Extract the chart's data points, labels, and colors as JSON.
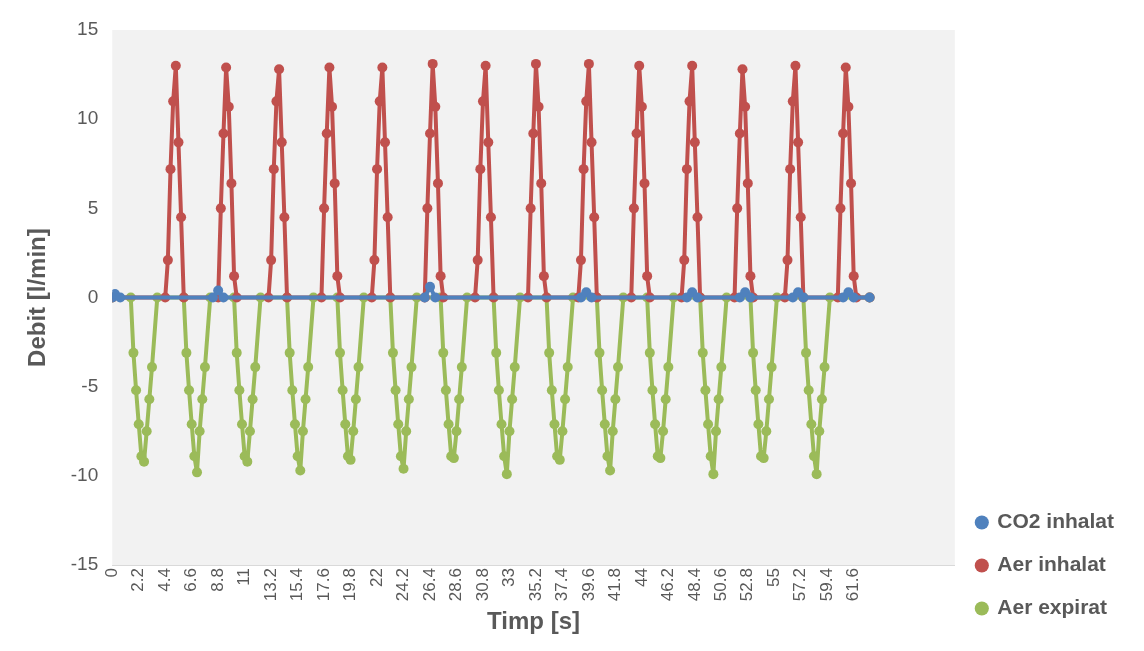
{
  "chart_data": {
    "type": "line",
    "xlabel": "Timp [s]",
    "ylabel": "Debit [l/min]",
    "xlim": [
      0,
      70
    ],
    "xticks": [
      0,
      2.2,
      4.4,
      6.6,
      8.8,
      11,
      13.2,
      15.4,
      17.6,
      19.8,
      22,
      24.2,
      26.4,
      28.6,
      30.8,
      33,
      35.2,
      37.4,
      39.6,
      41.8,
      44,
      46.2,
      48.4,
      50.6,
      52.8,
      55,
      57.2,
      59.4,
      61.6
    ],
    "ylim": [
      -15,
      15
    ],
    "yticks": [
      -15,
      -10,
      -5,
      0,
      5,
      10,
      15
    ],
    "grid": false,
    "legend": "bottom right",
    "marker": "circle",
    "line_style": "solid",
    "series": [
      {
        "name": "CO2 inhalat",
        "color": "#4f81bd",
        "x": [
          0,
          0.22,
          0.66,
          8.36,
          8.8,
          9.24,
          25.96,
          26.4,
          26.84,
          38.94,
          39.38,
          39.82,
          47.74,
          48.18,
          48.62,
          52.14,
          52.58,
          53.02,
          56.54,
          56.98,
          57.42,
          60.72,
          61.16,
          61.6,
          62.92
        ],
        "values": [
          0,
          0.2,
          0,
          0,
          0.4,
          0,
          0,
          0.6,
          0,
          0,
          0.3,
          0,
          0,
          0.3,
          0,
          0,
          0.3,
          0,
          0,
          0.3,
          0,
          0,
          0.3,
          0,
          0
        ]
      },
      {
        "name": "Aer inhalat",
        "color": "#c0504d",
        "x": [
          0,
          4.4,
          4.62,
          4.84,
          5.06,
          5.28,
          5.5,
          5.72,
          5.94,
          8.8,
          9.02,
          9.24,
          9.46,
          9.68,
          9.9,
          10.12,
          10.34,
          12.98,
          13.2,
          13.42,
          13.64,
          13.86,
          14.08,
          14.3,
          14.52,
          17.38,
          17.6,
          17.82,
          18.04,
          18.26,
          18.48,
          18.7,
          18.92,
          21.56,
          21.78,
          22,
          22.22,
          22.44,
          22.66,
          22.88,
          23.1,
          25.96,
          26.18,
          26.4,
          26.62,
          26.84,
          27.06,
          27.28,
          27.5,
          30.14,
          30.36,
          30.58,
          30.8,
          31.02,
          31.24,
          31.46,
          31.68,
          34.54,
          34.76,
          34.98,
          35.2,
          35.42,
          35.64,
          35.86,
          36.08,
          38.72,
          38.94,
          39.16,
          39.38,
          39.6,
          39.82,
          40.04,
          40.26,
          43.12,
          43.34,
          43.56,
          43.78,
          44,
          44.22,
          44.44,
          44.66,
          47.3,
          47.52,
          47.74,
          47.96,
          48.18,
          48.4,
          48.62,
          48.84,
          51.7,
          51.92,
          52.14,
          52.36,
          52.58,
          52.8,
          53.02,
          53.24,
          55.88,
          56.1,
          56.32,
          56.54,
          56.76,
          56.98,
          57.2,
          57.42,
          60.28,
          60.5,
          60.72,
          60.94,
          61.16,
          61.38,
          61.6,
          61.82,
          62.92
        ],
        "values": [
          0,
          0,
          2.1,
          7.2,
          11,
          13,
          8.7,
          4.5,
          0,
          0,
          5,
          9.2,
          12.9,
          10.7,
          6.4,
          1.2,
          0,
          0,
          2.1,
          7.2,
          11,
          12.8,
          8.7,
          4.5,
          0,
          0,
          5,
          9.2,
          12.9,
          10.7,
          6.4,
          1.2,
          0,
          0,
          2.1,
          7.2,
          11,
          12.9,
          8.7,
          4.5,
          0,
          0,
          5,
          9.2,
          13.1,
          10.7,
          6.4,
          1.2,
          0,
          0,
          2.1,
          7.2,
          11,
          13,
          8.7,
          4.5,
          0,
          0,
          5,
          9.2,
          13.1,
          10.7,
          6.4,
          1.2,
          0,
          0,
          2.1,
          7.2,
          11,
          13.1,
          8.7,
          4.5,
          0,
          0,
          5,
          9.2,
          13,
          10.7,
          6.4,
          1.2,
          0,
          0,
          2.1,
          7.2,
          11,
          13,
          8.7,
          4.5,
          0,
          0,
          5,
          9.2,
          12.8,
          10.7,
          6.4,
          1.2,
          0,
          0,
          2.1,
          7.2,
          11,
          13,
          8.7,
          4.5,
          0,
          0,
          5,
          9.2,
          12.9,
          10.7,
          6.4,
          1.2,
          0,
          0
        ]
      },
      {
        "name": "Aer expirat",
        "color": "#9bbb59",
        "x": [
          0,
          1.54,
          1.76,
          1.98,
          2.2,
          2.42,
          2.64,
          2.86,
          3.08,
          3.3,
          3.74,
          5.94,
          6.16,
          6.38,
          6.6,
          6.82,
          7.04,
          7.26,
          7.48,
          7.7,
          8.14,
          10.12,
          10.34,
          10.56,
          10.78,
          11,
          11.22,
          11.44,
          11.66,
          11.88,
          12.32,
          14.52,
          14.74,
          14.96,
          15.18,
          15.4,
          15.62,
          15.84,
          16.06,
          16.28,
          16.72,
          18.7,
          18.92,
          19.14,
          19.36,
          19.58,
          19.8,
          20.02,
          20.24,
          20.46,
          20.9,
          23.1,
          23.32,
          23.54,
          23.76,
          23.98,
          24.2,
          24.42,
          24.64,
          24.86,
          25.3,
          27.28,
          27.5,
          27.72,
          27.94,
          28.16,
          28.38,
          28.6,
          28.82,
          29.04,
          29.48,
          31.68,
          31.9,
          32.12,
          32.34,
          32.56,
          32.78,
          33,
          33.22,
          33.44,
          33.88,
          36.08,
          36.3,
          36.52,
          36.74,
          36.96,
          37.18,
          37.4,
          37.62,
          37.84,
          38.28,
          40.26,
          40.48,
          40.7,
          40.92,
          41.14,
          41.36,
          41.58,
          41.8,
          42.02,
          42.46,
          44.44,
          44.66,
          44.88,
          45.1,
          45.32,
          45.54,
          45.76,
          45.98,
          46.2,
          46.64,
          48.84,
          49.06,
          49.28,
          49.5,
          49.72,
          49.94,
          50.16,
          50.38,
          50.6,
          51.04,
          53.02,
          53.24,
          53.46,
          53.68,
          53.9,
          54.12,
          54.34,
          54.56,
          54.78,
          55.22,
          57.42,
          57.64,
          57.86,
          58.08,
          58.3,
          58.52,
          58.74,
          58.96,
          59.18,
          59.62,
          62.92
        ],
        "values": [
          0,
          0,
          -3.1,
          -5.2,
          -7.1,
          -8.9,
          -9.2,
          -7.5,
          -5.7,
          -3.9,
          0,
          0,
          -3.1,
          -5.2,
          -7.1,
          -8.9,
          -9.8,
          -7.5,
          -5.7,
          -3.9,
          0,
          0,
          -3.1,
          -5.2,
          -7.1,
          -8.9,
          -9.2,
          -7.5,
          -5.7,
          -3.9,
          0,
          0,
          -3.1,
          -5.2,
          -7.1,
          -8.9,
          -9.7,
          -7.5,
          -5.7,
          -3.9,
          0,
          0,
          -3.1,
          -5.2,
          -7.1,
          -8.9,
          -9.1,
          -7.5,
          -5.7,
          -3.9,
          0,
          0,
          -3.1,
          -5.2,
          -7.1,
          -8.9,
          -9.6,
          -7.5,
          -5.7,
          -3.9,
          0,
          0,
          -3.1,
          -5.2,
          -7.1,
          -8.9,
          -9,
          -7.5,
          -5.7,
          -3.9,
          0,
          0,
          -3.1,
          -5.2,
          -7.1,
          -8.9,
          -9.9,
          -7.5,
          -5.7,
          -3.9,
          0,
          0,
          -3.1,
          -5.2,
          -7.1,
          -8.9,
          -9.1,
          -7.5,
          -5.7,
          -3.9,
          0,
          0,
          -3.1,
          -5.2,
          -7.1,
          -8.9,
          -9.7,
          -7.5,
          -5.7,
          -3.9,
          0,
          0,
          -3.1,
          -5.2,
          -7.1,
          -8.9,
          -9,
          -7.5,
          -5.7,
          -3.9,
          0,
          0,
          -3.1,
          -5.2,
          -7.1,
          -8.9,
          -9.9,
          -7.5,
          -5.7,
          -3.9,
          0,
          0,
          -3.1,
          -5.2,
          -7.1,
          -8.9,
          -9,
          -7.5,
          -5.7,
          -3.9,
          0,
          0,
          -3.1,
          -5.2,
          -7.1,
          -8.9,
          -9.9,
          -7.5,
          -5.7,
          -3.9,
          0,
          0
        ]
      }
    ]
  }
}
